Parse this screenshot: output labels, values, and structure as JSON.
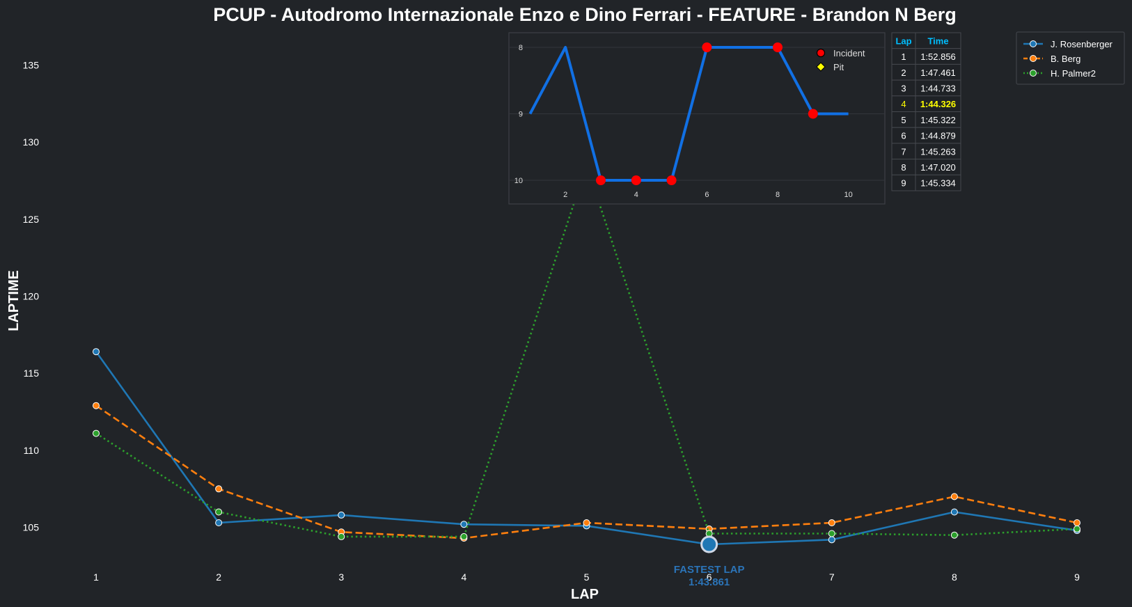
{
  "title": "PCUP - Autodromo Internazionale Enzo e Dino Ferrari - FEATURE - Brandon N Berg",
  "colors": {
    "background": "#212428",
    "text": "#ffffff",
    "rosenberger": "#1f77b4",
    "berg": "#ff7f0e",
    "palmer": "#2ca02c",
    "inset_line": "#1170e4",
    "incident": "#ff0000",
    "pit": "#ffff00",
    "table_header": "#00bfff",
    "highlight": "#ffff00"
  },
  "chart_data": [
    {
      "type": "line",
      "title": "PCUP - Autodromo Internazionale Enzo e Dino Ferrari - FEATURE - Brandon N Berg",
      "xlabel": "LAP",
      "ylabel": "LAPTIME",
      "x": [
        1,
        2,
        3,
        4,
        5,
        6,
        7,
        8,
        9
      ],
      "xlim": [
        0.5,
        9.5
      ],
      "ylim": [
        102.5,
        137.5
      ],
      "yticks": [
        105,
        110,
        115,
        120,
        125,
        130,
        135
      ],
      "grid": false,
      "legend": "top-right",
      "series": [
        {
          "name": "J. Rosenberger",
          "style": "solid",
          "values": [
            116.4,
            105.3,
            105.8,
            105.2,
            105.1,
            103.9,
            104.2,
            106.0,
            104.8
          ]
        },
        {
          "name": "B. Berg",
          "style": "dashed",
          "values": [
            112.9,
            107.5,
            104.7,
            104.3,
            105.3,
            104.9,
            105.3,
            107.0,
            105.3
          ]
        },
        {
          "name": "H. Palmer2",
          "style": "dotted",
          "values": [
            111.1,
            106.0,
            104.4,
            104.4,
            128.5,
            104.6,
            104.6,
            104.5,
            104.9
          ]
        }
      ],
      "annotation": {
        "label": "FASTEST LAP",
        "value": "1:43.861",
        "x": 6,
        "y": 103.9
      }
    },
    {
      "type": "line",
      "title": "",
      "xlabel": "",
      "ylabel": "",
      "x": [
        1,
        2,
        3,
        4,
        5,
        6,
        7,
        8,
        9,
        10
      ],
      "values": [
        9,
        8,
        10,
        10,
        10,
        8,
        8,
        8,
        9,
        9
      ],
      "xlim": [
        0.5,
        10.5
      ],
      "ylim": [
        10.1,
        7.9
      ],
      "y_inverted": true,
      "xticks": [
        2,
        4,
        6,
        8,
        10
      ],
      "yticks": [
        8,
        9,
        10
      ],
      "grid": true,
      "incidents": [
        3,
        4,
        5,
        6,
        8,
        9
      ],
      "pits": [],
      "legend": "top-right",
      "legend_entries": [
        "Incident",
        "Pit"
      ]
    }
  ],
  "lap_table": {
    "headers": [
      "Lap",
      "Time"
    ],
    "highlight_row": 4,
    "rows": [
      [
        "1",
        "1:52.856"
      ],
      [
        "2",
        "1:47.461"
      ],
      [
        "3",
        "1:44.733"
      ],
      [
        "4",
        "1:44.326"
      ],
      [
        "5",
        "1:45.322"
      ],
      [
        "6",
        "1:44.879"
      ],
      [
        "7",
        "1:45.263"
      ],
      [
        "8",
        "1:47.020"
      ],
      [
        "9",
        "1:45.334"
      ]
    ]
  }
}
